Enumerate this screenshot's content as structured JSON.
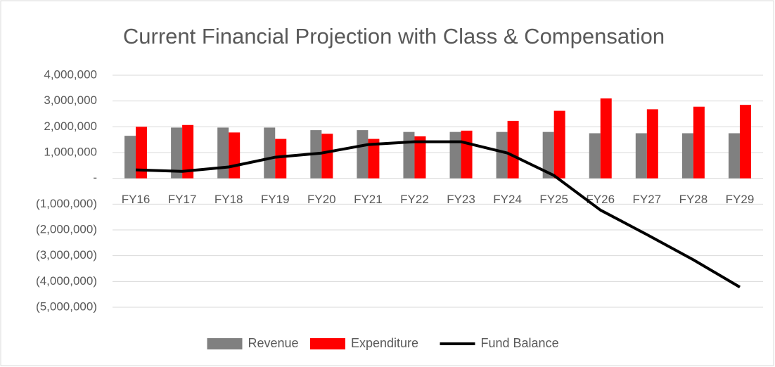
{
  "chart_data": {
    "type": "bar-line",
    "title": "Current Financial Projection with Class & Compensation",
    "categories": [
      "FY16",
      "FY17",
      "FY18",
      "FY19",
      "FY20",
      "FY21",
      "FY22",
      "FY23",
      "FY24",
      "FY25",
      "FY26",
      "FY27",
      "FY28",
      "FY29"
    ],
    "series": [
      {
        "name": "Revenue",
        "type": "bar",
        "color": "#808080",
        "values": [
          1650000,
          1970000,
          1970000,
          1970000,
          1870000,
          1870000,
          1800000,
          1800000,
          1800000,
          1800000,
          1750000,
          1750000,
          1750000,
          1750000
        ]
      },
      {
        "name": "Expenditure",
        "type": "bar",
        "color": "#ff0000",
        "values": [
          2000000,
          2070000,
          1780000,
          1530000,
          1730000,
          1530000,
          1630000,
          1850000,
          2230000,
          2620000,
          3100000,
          2680000,
          2780000,
          2850000
        ]
      },
      {
        "name": "Fund Balance",
        "type": "line",
        "color": "#000000",
        "values": [
          330000,
          270000,
          440000,
          820000,
          980000,
          1310000,
          1420000,
          1420000,
          980000,
          110000,
          -1230000,
          -2180000,
          -3160000,
          -4220000
        ]
      }
    ],
    "ylim": [
      -5000000,
      4000000
    ],
    "yticks": [
      {
        "value": 4000000,
        "label": "4,000,000"
      },
      {
        "value": 3000000,
        "label": "3,000,000"
      },
      {
        "value": 2000000,
        "label": "2,000,000"
      },
      {
        "value": 1000000,
        "label": "1,000,000"
      },
      {
        "value": 0,
        "label": "-"
      },
      {
        "value": -1000000,
        "label": "(1,000,000)"
      },
      {
        "value": -2000000,
        "label": "(2,000,000)"
      },
      {
        "value": -3000000,
        "label": "(3,000,000)"
      },
      {
        "value": -4000000,
        "label": "(4,000,000)"
      },
      {
        "value": -5000000,
        "label": "(5,000,000)"
      }
    ],
    "grid": true,
    "legend": "bottom"
  }
}
